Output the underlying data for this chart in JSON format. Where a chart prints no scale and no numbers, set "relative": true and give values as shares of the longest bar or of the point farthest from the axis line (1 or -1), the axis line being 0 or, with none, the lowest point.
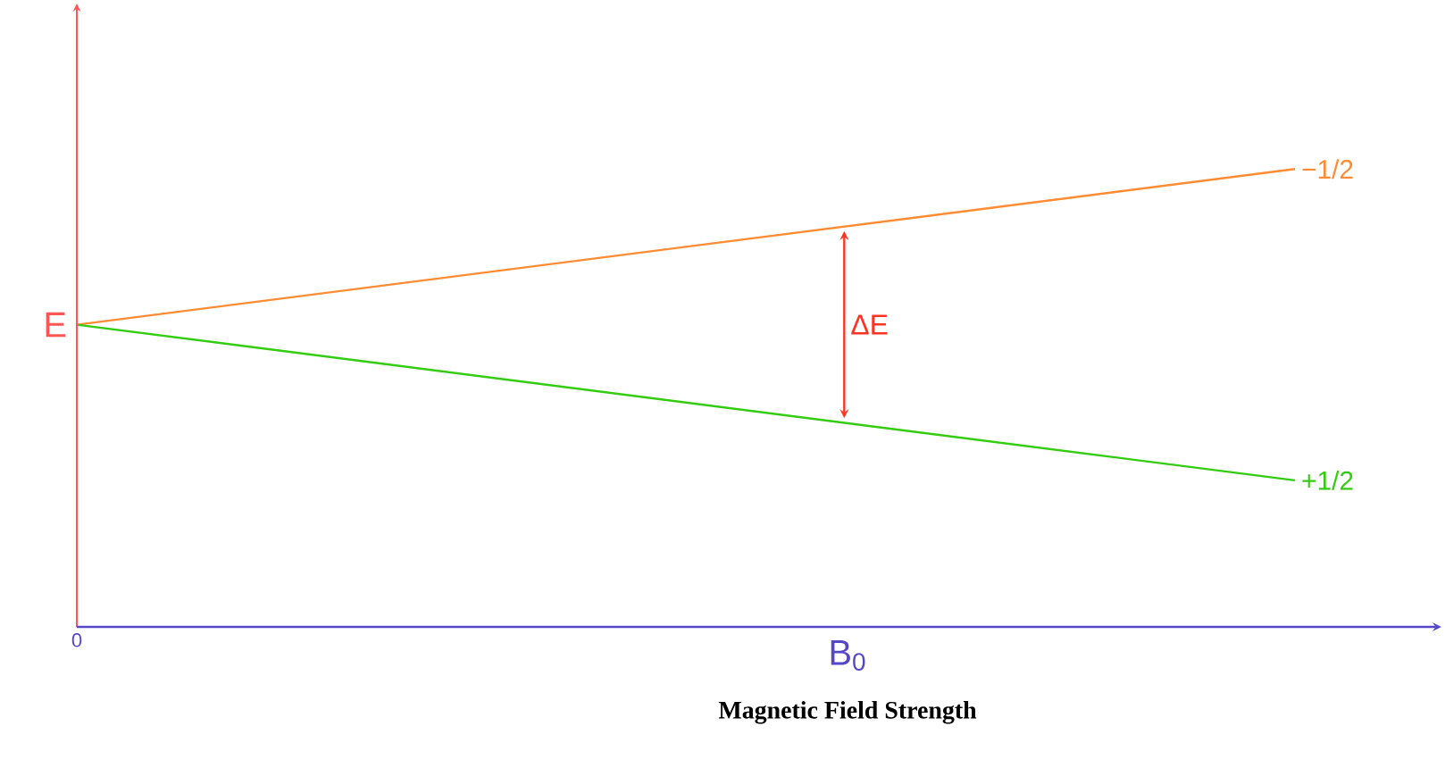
{
  "chart_data": {
    "type": "line",
    "relative": true,
    "ylabel": "E",
    "xlabel": "B$_{0}$",
    "categories": [
      null,
      null
    ],
    "series": [
      {
        "name": "−1/2",
        "color": "#ff8c33",
        "values": [
          0.66,
          1
        ]
      },
      {
        "name": "+1/2",
        "color": "#33cc11",
        "values": [
          0.66,
          0.32
        ]
      }
    ],
    "annotations": [
      "ΔE",
      "0",
      "Magnetic Field Strength"
    ],
    "legend": false,
    "marker": "none",
    "line_style": "solid"
  }
}
